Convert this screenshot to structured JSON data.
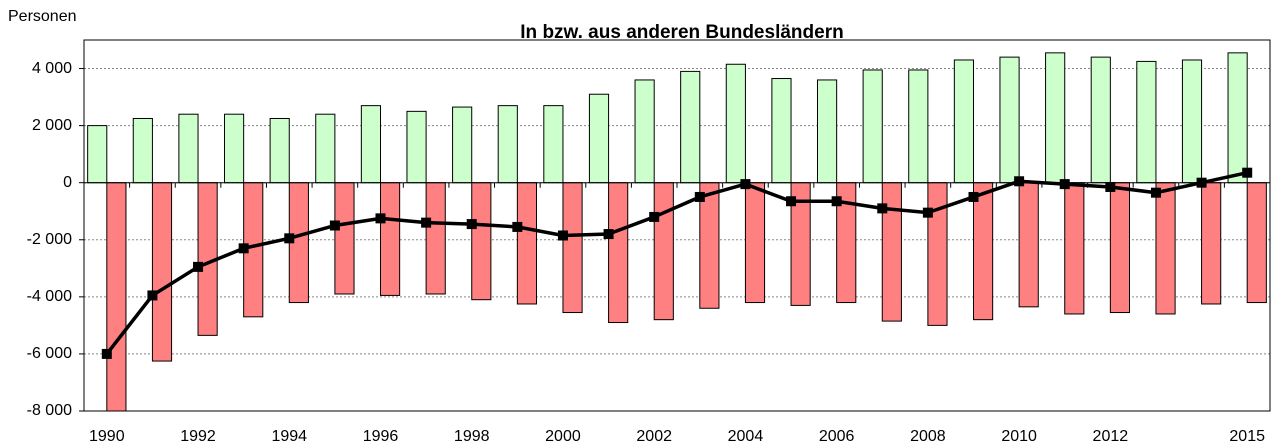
{
  "chart_data": {
    "type": "bar",
    "title": "In bzw. aus anderen Bundesländern",
    "y_label": "Personen",
    "categories": [
      "1990",
      null,
      "1992",
      null,
      "1994",
      null,
      "1996",
      null,
      "1998",
      null,
      "2000",
      null,
      "2002",
      null,
      "2004",
      null,
      "2006",
      null,
      "2008",
      null,
      "2010",
      null,
      "2012",
      null,
      null,
      "2015"
    ],
    "series": [
      {
        "type": "bar",
        "color": "#ccffcc",
        "values": [
          2000,
          2250,
          2400,
          2400,
          2250,
          2400,
          2700,
          2500,
          2650,
          2700,
          2700,
          3100,
          3600,
          3900,
          4150,
          3650,
          3600,
          3950,
          3950,
          4300,
          4400,
          4550,
          4400,
          4250,
          4300,
          4550
        ]
      },
      {
        "type": "bar",
        "color": "#ff8080",
        "values": [
          -8000,
          -6250,
          -5350,
          -4700,
          -4200,
          -3900,
          -3950,
          -3900,
          -4100,
          -4250,
          -4550,
          -4900,
          -4800,
          -4400,
          -4200,
          -4300,
          -4200,
          -4850,
          -5000,
          -4800,
          -4350,
          -4600,
          -4550,
          -4600,
          -4250,
          -4200
        ]
      },
      {
        "type": "line",
        "color": "#000000",
        "values": [
          -6000,
          -3950,
          -2950,
          -2300,
          -1950,
          -1500,
          -1250,
          -1400,
          -1450,
          -1550,
          -1850,
          -1800,
          -1200,
          -500,
          -50,
          -650,
          -650,
          -900,
          -1050,
          -500,
          50,
          -50,
          -150,
          -350,
          0,
          350
        ]
      }
    ],
    "ylim": [
      -8000,
      5000
    ],
    "yticks": [
      {
        "value": -8000,
        "label": "-8 000"
      },
      {
        "value": -6000,
        "label": "-6 000"
      },
      {
        "value": -4000,
        "label": "-4 000"
      },
      {
        "value": -2000,
        "label": "-2 000"
      },
      0,
      {
        "value": 2000,
        "label": "2 000"
      },
      {
        "value": 4000,
        "label": "4 000"
      }
    ],
    "grid": true
  }
}
